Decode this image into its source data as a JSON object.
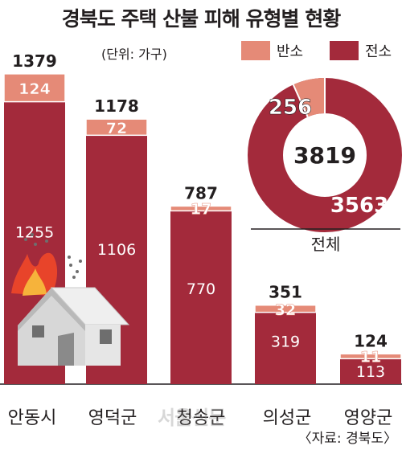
{
  "chart_data": {
    "type": "bar",
    "title": "경북도 주택 산불 피해 유형별 현황",
    "unit": "(단위: 가구)",
    "categories": [
      "안동시",
      "영덕군",
      "청송군",
      "의성군",
      "영양군"
    ],
    "totals": [
      "1379",
      "1178",
      "787",
      "351",
      "124"
    ],
    "series": [
      {
        "name": "전소",
        "color": "#a32a3b",
        "values": [
          1255,
          1106,
          770,
          319,
          113
        ]
      },
      {
        "name": "반소",
        "color": "#e58a77",
        "values": [
          124,
          72,
          17,
          32,
          11
        ]
      }
    ],
    "stacked": true,
    "ylim": [
      0,
      1400
    ],
    "donut": {
      "label": "전체",
      "total": "3819",
      "slices": [
        {
          "name": "전소",
          "value": 3563,
          "color": "#a32a3b"
        },
        {
          "name": "반소",
          "value": 256,
          "color": "#e58a77"
        }
      ]
    },
    "source": "〈자료: 경북도〉",
    "watermark": "서울신문"
  }
}
